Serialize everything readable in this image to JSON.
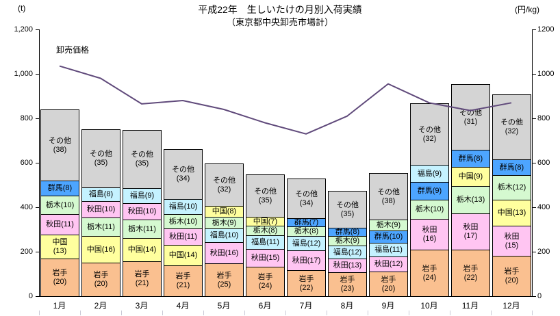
{
  "title": {
    "line1": "平成22年　生しいたけの月別入荷実績",
    "line2": "（東京都中央卸売市場計）"
  },
  "left_axis": {
    "unit": "(t)",
    "tick_labels": [
      "0",
      "200",
      "400",
      "600",
      "800",
      "1,000",
      "1,200"
    ]
  },
  "right_axis": {
    "unit": "(円/kg)",
    "tick_labels": [
      "0",
      "200",
      "400",
      "600",
      "800",
      "1000",
      "1200"
    ]
  },
  "line_label": "卸売価格",
  "colors": {
    "岩手": "#fac090",
    "中国": "#ffff9e",
    "秋田": "#ffc5f2",
    "栃木": "#d5f9d0",
    "福島": "#c5f2ff",
    "群馬": "#4da5ff",
    "その他": "#d4d4d4",
    "line": "#604a7b",
    "axis": "#000000",
    "bottom_tick": "#c9c9d6"
  },
  "chart_data": {
    "type": "combo",
    "title": "平成22年　生しいたけの月別入荷実績（東京都中央卸売市場計）",
    "categories": [
      "1月",
      "2月",
      "3月",
      "4月",
      "5月",
      "6月",
      "7月",
      "8月",
      "9月",
      "10月",
      "11月",
      "12月"
    ],
    "left_axis": {
      "label": "(t)",
      "range": [
        0,
        1200
      ],
      "tick_step": 200,
      "applies_to": "stacked bars"
    },
    "right_axis": {
      "label": "(円/kg)",
      "range": [
        0,
        1200
      ],
      "tick_step": 200,
      "applies_to": "price line"
    },
    "grid": "off",
    "legend": "none (line labeled 卸売価格 near first point)",
    "stacked_bars": {
      "type": "bar",
      "unit": "t",
      "note": "segment numbers in parentheses are percentage shares; totals estimated from bar heights",
      "totals": [
        840,
        751,
        748,
        661,
        596,
        548,
        530,
        473,
        555,
        869,
        953,
        907
      ],
      "months": [
        [
          {
            "name": "岩手",
            "pct": 20,
            "wrap": true
          },
          {
            "name": "中国",
            "pct": 13,
            "wrap": true
          },
          {
            "name": "秋田",
            "pct": 11
          },
          {
            "name": "栃木",
            "pct": 10
          },
          {
            "name": "群馬",
            "pct": 8
          },
          {
            "name": "その他",
            "pct": 38,
            "wrap": true
          }
        ],
        [
          {
            "name": "岩手",
            "pct": 20,
            "wrap": true
          },
          {
            "name": "中国",
            "pct": 16
          },
          {
            "name": "栃木",
            "pct": 11
          },
          {
            "name": "秋田",
            "pct": 10
          },
          {
            "name": "福島",
            "pct": 8
          },
          {
            "name": "その他",
            "pct": 35,
            "wrap": true
          }
        ],
        [
          {
            "name": "岩手",
            "pct": 21,
            "wrap": true
          },
          {
            "name": "中国",
            "pct": 14
          },
          {
            "name": "栃木",
            "pct": 11
          },
          {
            "name": "秋田",
            "pct": 10
          },
          {
            "name": "福島",
            "pct": 9
          },
          {
            "name": "その他",
            "pct": 35,
            "wrap": true
          }
        ],
        [
          {
            "name": "岩手",
            "pct": 21,
            "wrap": true
          },
          {
            "name": "中国",
            "pct": 14
          },
          {
            "name": "秋田",
            "pct": 11
          },
          {
            "name": "栃木",
            "pct": 10
          },
          {
            "name": "福島",
            "pct": 10
          },
          {
            "name": "その他",
            "pct": 34,
            "wrap": true
          }
        ],
        [
          {
            "name": "岩手",
            "pct": 25,
            "wrap": true
          },
          {
            "name": "秋田",
            "pct": 16
          },
          {
            "name": "福島",
            "pct": 10
          },
          {
            "name": "栃木",
            "pct": 9
          },
          {
            "name": "中国",
            "pct": 8
          },
          {
            "name": "その他",
            "pct": 32,
            "wrap": true
          }
        ],
        [
          {
            "name": "岩手",
            "pct": 24,
            "wrap": true
          },
          {
            "name": "秋田",
            "pct": 15
          },
          {
            "name": "福島",
            "pct": 11
          },
          {
            "name": "栃木",
            "pct": 8
          },
          {
            "name": "中国",
            "pct": 7
          },
          {
            "name": "その他",
            "pct": 35,
            "wrap": true
          }
        ],
        [
          {
            "name": "岩手",
            "pct": 22,
            "wrap": true
          },
          {
            "name": "秋田",
            "pct": 17
          },
          {
            "name": "福島",
            "pct": 12
          },
          {
            "name": "栃木",
            "pct": 8
          },
          {
            "name": "群馬",
            "pct": 7
          },
          {
            "name": "その他",
            "pct": 34,
            "wrap": true
          }
        ],
        [
          {
            "name": "岩手",
            "pct": 23,
            "wrap": true
          },
          {
            "name": "秋田",
            "pct": 13
          },
          {
            "name": "福島",
            "pct": 12
          },
          {
            "name": "栃木",
            "pct": 9
          },
          {
            "name": "群馬",
            "pct": 8
          },
          {
            "name": "その他",
            "pct": 35,
            "wrap": true
          }
        ],
        [
          {
            "name": "岩手",
            "pct": 20,
            "wrap": true
          },
          {
            "name": "秋田",
            "pct": 12
          },
          {
            "name": "福島",
            "pct": 11
          },
          {
            "name": "群馬",
            "pct": 10
          },
          {
            "name": "栃木",
            "pct": 9
          },
          {
            "name": "その他",
            "pct": 38,
            "wrap": true
          }
        ],
        [
          {
            "name": "岩手",
            "pct": 24,
            "wrap": true
          },
          {
            "name": "秋田",
            "pct": 16,
            "wrap": true
          },
          {
            "name": "栃木",
            "pct": 10
          },
          {
            "name": "群馬",
            "pct": 9
          },
          {
            "name": "福島",
            "pct": 9
          },
          {
            "name": "その他",
            "pct": 32,
            "wrap": true
          }
        ],
        [
          {
            "name": "岩手",
            "pct": 22,
            "wrap": true
          },
          {
            "name": "秋田",
            "pct": 17,
            "wrap": true
          },
          {
            "name": "栃木",
            "pct": 13
          },
          {
            "name": "中国",
            "pct": 9
          },
          {
            "name": "群馬",
            "pct": 8
          },
          {
            "name": "その他",
            "pct": 31,
            "wrap": true
          }
        ],
        [
          {
            "name": "岩手",
            "pct": 20,
            "wrap": true
          },
          {
            "name": "秋田",
            "pct": 15,
            "wrap": true
          },
          {
            "name": "中国",
            "pct": 13
          },
          {
            "name": "栃木",
            "pct": 12
          },
          {
            "name": "群馬",
            "pct": 8
          },
          {
            "name": "その他",
            "pct": 32,
            "wrap": true
          }
        ]
      ]
    },
    "line_series": {
      "type": "line",
      "name": "卸売価格",
      "unit": "円/kg",
      "values": [
        1035,
        980,
        865,
        880,
        840,
        780,
        730,
        810,
        955,
        870,
        835,
        870
      ]
    }
  }
}
